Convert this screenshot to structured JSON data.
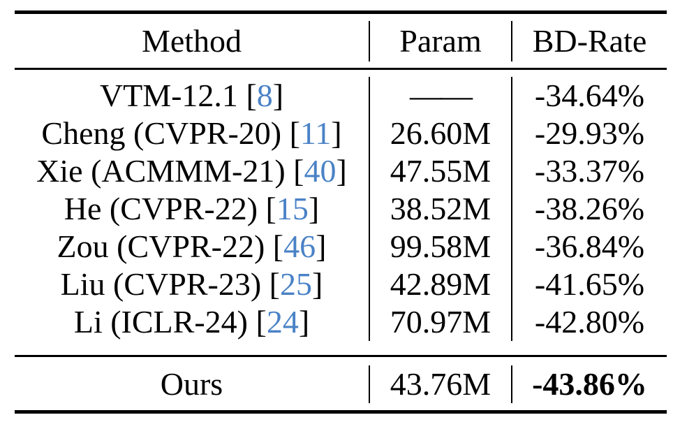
{
  "table": {
    "header": {
      "method": "Method",
      "param": "Param",
      "bd_rate": "BD-Rate"
    },
    "cite_brackets": [
      "[",
      "]"
    ],
    "rows": [
      {
        "method": "VTM-12.1",
        "cite": "8",
        "param": "——",
        "bd_rate": "-34.64%"
      },
      {
        "method": "Cheng (CVPR-20)",
        "cite": "11",
        "param": "26.60M",
        "bd_rate": "-29.93%"
      },
      {
        "method": "Xie (ACMMM-21)",
        "cite": "40",
        "param": "47.55M",
        "bd_rate": "-33.37%"
      },
      {
        "method": "He (CVPR-22)",
        "cite": "15",
        "param": "38.52M",
        "bd_rate": "-38.26%"
      },
      {
        "method": "Zou (CVPR-22)",
        "cite": "46",
        "param": "99.58M",
        "bd_rate": "-36.84%"
      },
      {
        "method": "Liu (CVPR-23)",
        "cite": "25",
        "param": "42.89M",
        "bd_rate": "-41.65%"
      },
      {
        "method": "Li (ICLR-24)",
        "cite": "24",
        "param": "70.97M",
        "bd_rate": "-42.80%"
      }
    ],
    "footer": {
      "method": "Ours",
      "param": "43.76M",
      "bd_rate": "-43.86%"
    }
  },
  "colors": {
    "citation_blue": "#4a82c6",
    "text": "#000000",
    "rule": "#000000"
  }
}
